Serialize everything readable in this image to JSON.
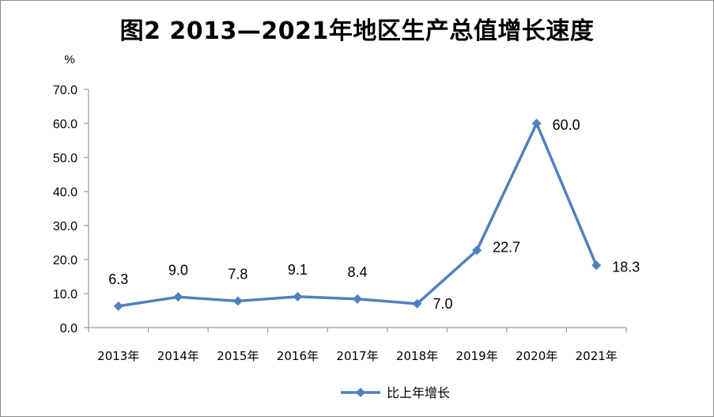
{
  "chart_data": {
    "type": "line",
    "title": "图2  2013—2021年地区生产总值增长速度",
    "ylabel": "%",
    "xlabel": "",
    "ylim": [
      0,
      70
    ],
    "y_ticks": [
      "0.0",
      "10.0",
      "20.0",
      "30.0",
      "40.0",
      "50.0",
      "60.0",
      "70.0"
    ],
    "categories": [
      "2013年",
      "2014年",
      "2015年",
      "2016年",
      "2017年",
      "2018年",
      "2019年",
      "2020年",
      "2021年"
    ],
    "series": [
      {
        "name": "比上年增长",
        "values": [
          6.3,
          9.0,
          7.8,
          9.1,
          8.4,
          7.0,
          22.7,
          60.0,
          18.3
        ],
        "labels": [
          "6.3",
          "9.0",
          "7.8",
          "9.1",
          "8.4",
          "7.0",
          "22.7",
          "60.0",
          "18.3"
        ],
        "color": "#4f81bd"
      }
    ],
    "grid": false,
    "legend": "bottom"
  }
}
